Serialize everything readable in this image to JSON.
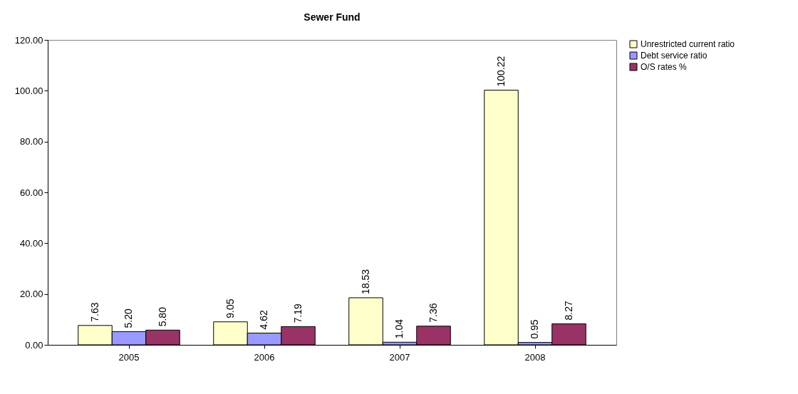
{
  "chart_data": {
    "type": "bar",
    "title": "Sewer Fund",
    "categories": [
      "2005",
      "2006",
      "2007",
      "2008"
    ],
    "series": [
      {
        "name": "Unrestricted current ratio",
        "color": "#ffffcc",
        "values": [
          7.63,
          9.05,
          18.53,
          100.22
        ],
        "value_labels": [
          "7.63",
          "9.05",
          "18.53",
          "100.22"
        ]
      },
      {
        "name": "Debt service ratio",
        "color": "#9999ff",
        "values": [
          5.2,
          4.62,
          1.04,
          0.95
        ],
        "value_labels": [
          "5.20",
          "4.62",
          "1.04",
          "0.95"
        ]
      },
      {
        "name": "O/S rates %",
        "color": "#993366",
        "values": [
          5.8,
          7.19,
          7.36,
          8.27
        ],
        "value_labels": [
          "5.80",
          "7.19",
          "7.36",
          "8.27"
        ]
      }
    ],
    "ylim": [
      0,
      120
    ],
    "yticks": [
      {
        "value": 0,
        "label": "0.00"
      },
      {
        "value": 20,
        "label": "20.00"
      },
      {
        "value": 40,
        "label": "40.00"
      },
      {
        "value": 60,
        "label": "60.00"
      },
      {
        "value": 80,
        "label": "80.00"
      },
      {
        "value": 100,
        "label": "100.00"
      },
      {
        "value": 120,
        "label": "120.00"
      }
    ],
    "grid": false,
    "legend": "right"
  }
}
